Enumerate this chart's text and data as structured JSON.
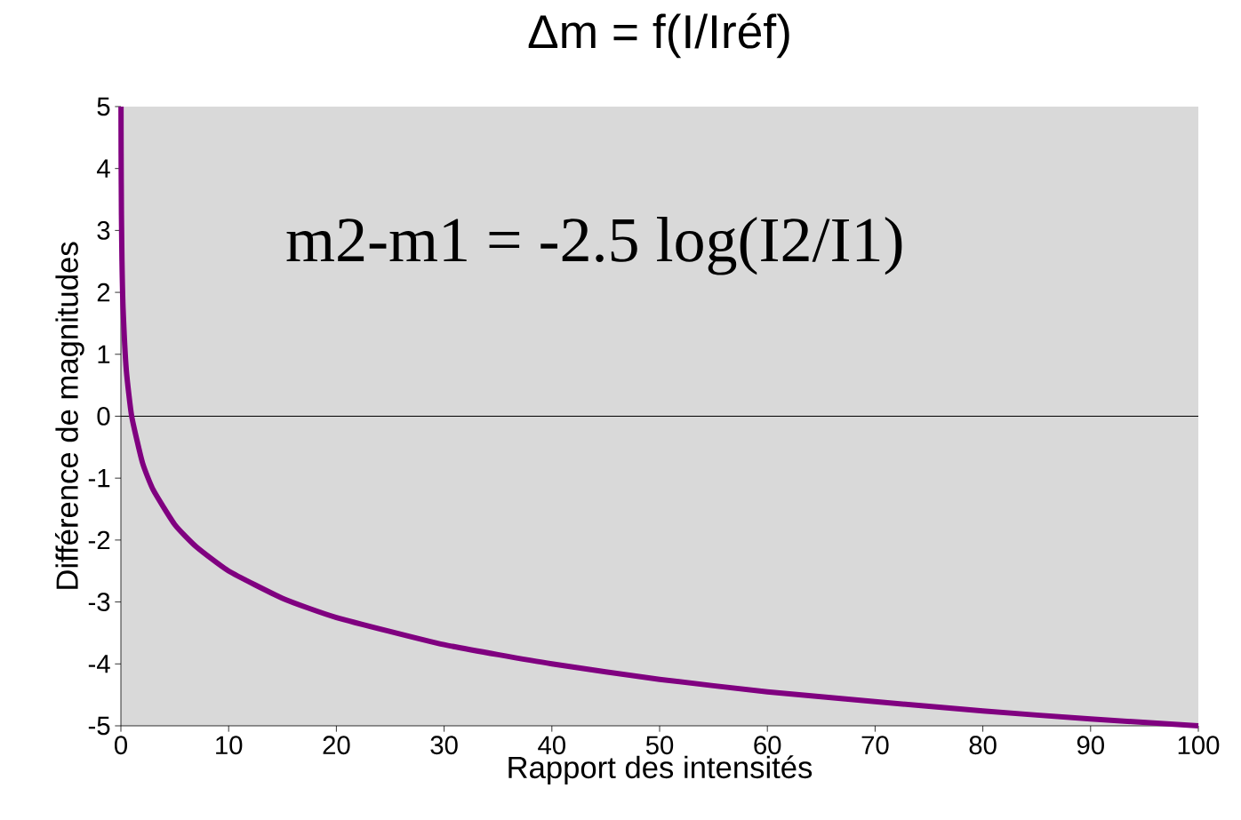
{
  "chart_data": {
    "type": "line",
    "title": "Δm = f(I/Iréf)",
    "xlabel": "Rapport des intensités",
    "ylabel": "Différence de magnitudes",
    "annotations": [
      "m2-m1 = -2.5 log(I2/I1)"
    ],
    "x": [
      0.01,
      0.02,
      0.05,
      0.1,
      0.2,
      0.5,
      1,
      2,
      3,
      5,
      7,
      10,
      15,
      20,
      30,
      40,
      50,
      60,
      70,
      80,
      90,
      100
    ],
    "series": [
      {
        "color": "#800080",
        "values": [
          5,
          4.25,
          3.25,
          2.5,
          1.75,
          0.75,
          0,
          -0.75,
          -1.19,
          -1.75,
          -2.11,
          -2.5,
          -2.94,
          -3.25,
          -3.69,
          -4.0,
          -4.25,
          -4.45,
          -4.61,
          -4.76,
          -4.89,
          -5
        ]
      }
    ],
    "xlim": [
      0,
      100
    ],
    "ylim": [
      -5,
      5
    ],
    "xticks": [
      0,
      10,
      20,
      30,
      40,
      50,
      60,
      70,
      80,
      90,
      100
    ],
    "yticks": [
      -5,
      -4,
      -3,
      -2,
      -1,
      0,
      1,
      2,
      3,
      4,
      5
    ],
    "ref_lines": [
      {
        "axis": "y",
        "value": 0,
        "color": "#000000"
      }
    ]
  }
}
